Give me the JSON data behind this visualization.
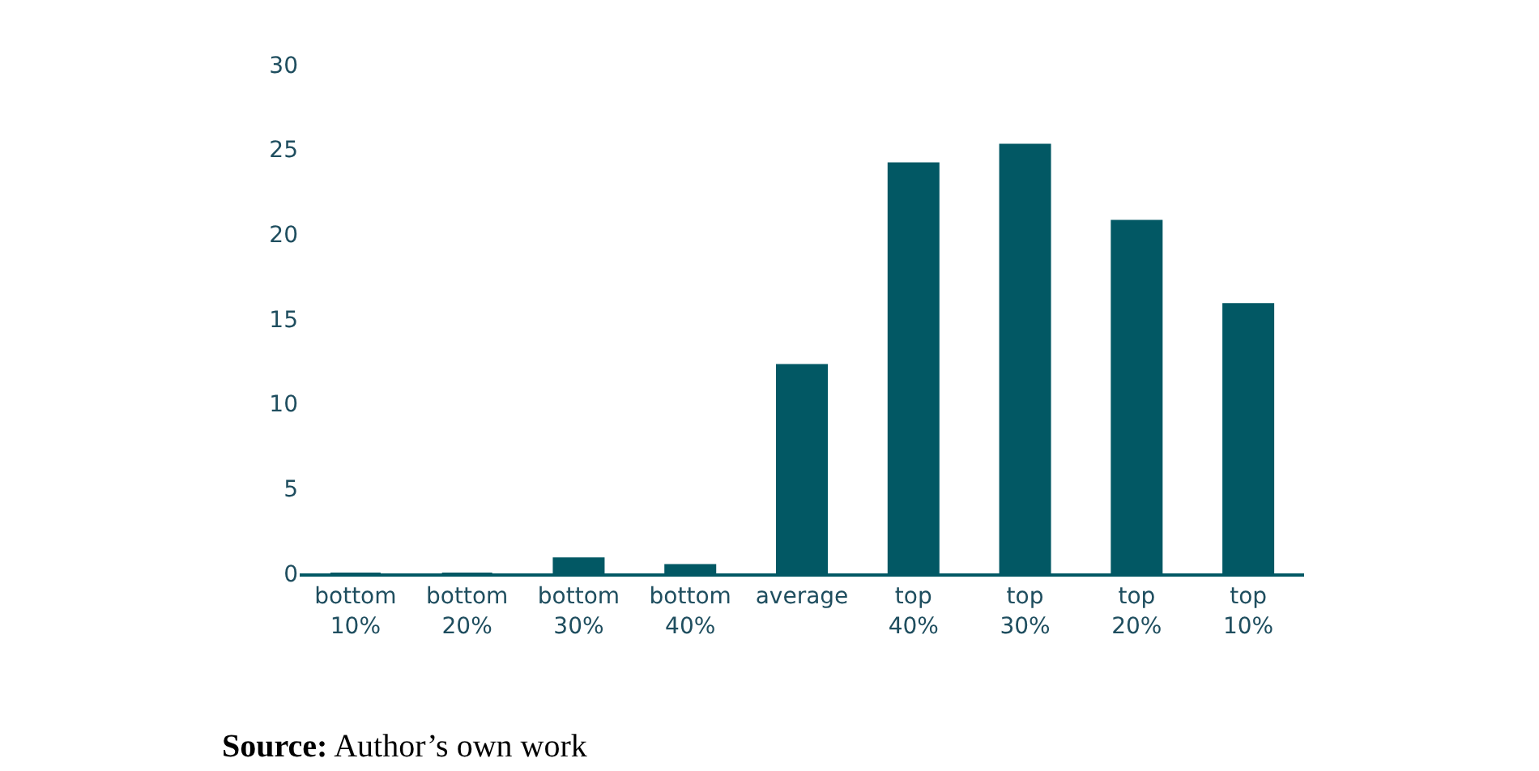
{
  "chart_data": {
    "type": "bar",
    "categories": [
      "bottom 10%",
      "bottom 20%",
      "bottom 30%",
      "bottom 40%",
      "average",
      "top 40%",
      "top 30%",
      "top 20%",
      "top 10%"
    ],
    "values": [
      0,
      0,
      0.9,
      0.5,
      12.3,
      24.2,
      25.3,
      20.8,
      15.9
    ],
    "color": "#025864",
    "ylim": [
      0,
      30
    ],
    "yticks": [
      0,
      5,
      10,
      15,
      20,
      25,
      30
    ],
    "grid": false,
    "annotations": [
      "Source: Author’s own work"
    ]
  }
}
